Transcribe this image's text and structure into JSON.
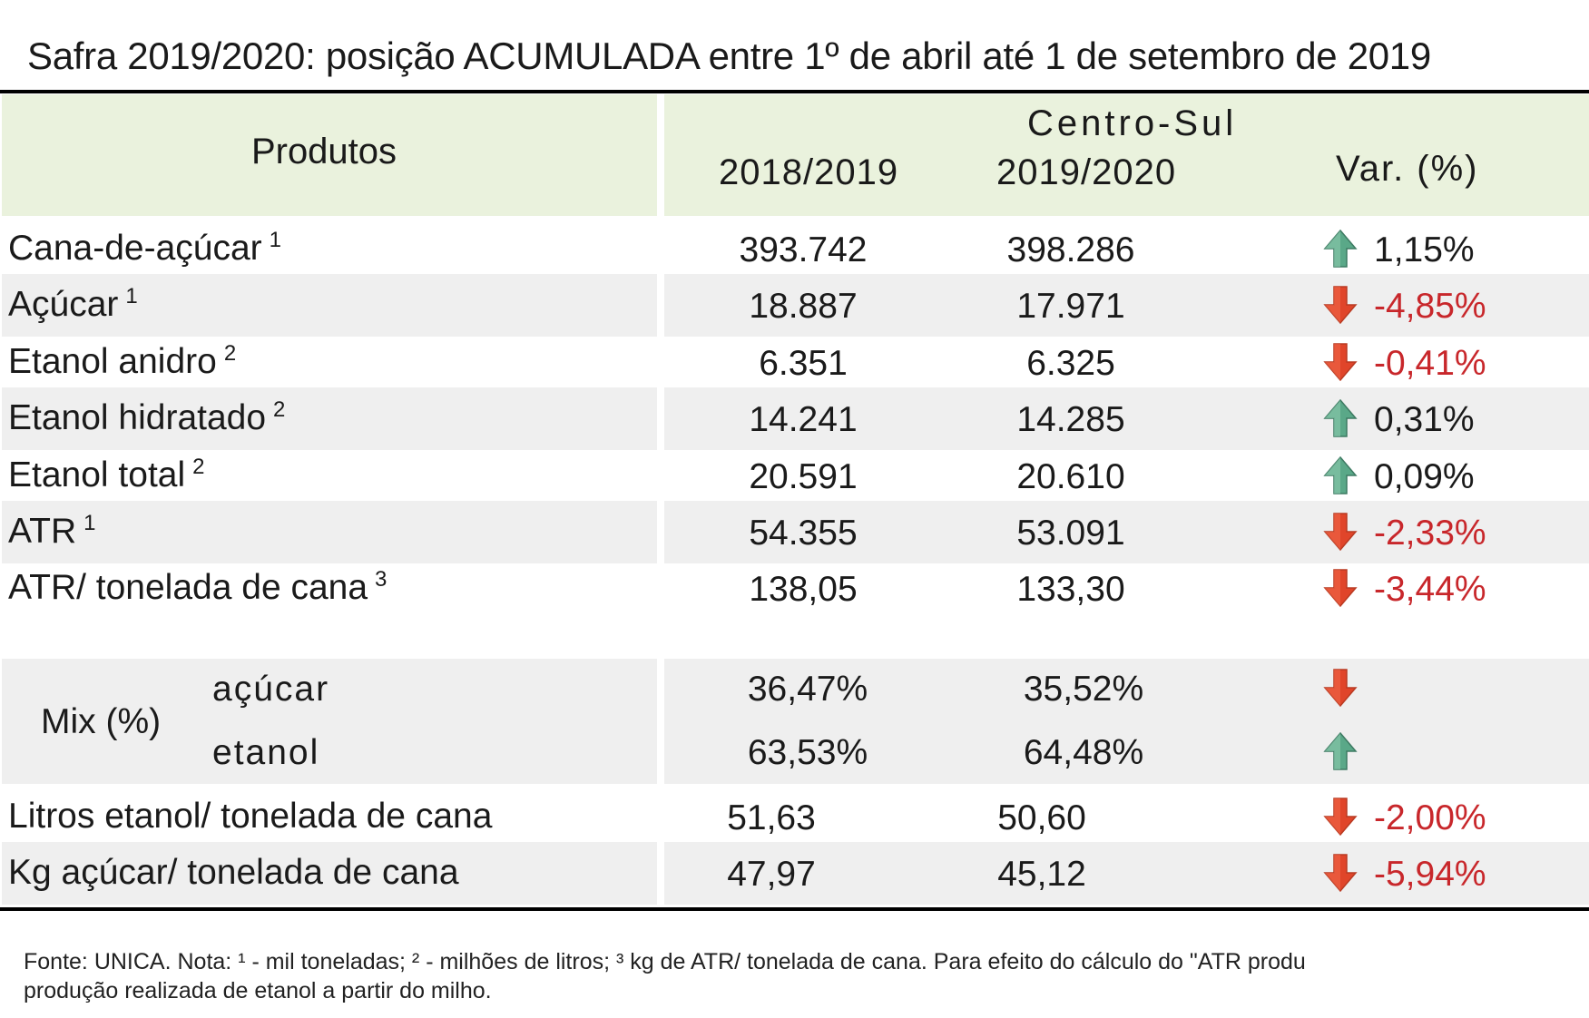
{
  "title": "Safra 2019/2020: posição ACUMULADA entre 1º de abril até 1 de setembro de 2019",
  "header": {
    "produtos": "Produtos",
    "region": "Centro-Sul",
    "col_2018": "2018/2019",
    "col_2019": "2019/2020",
    "col_var": "Var. (%)"
  },
  "rows": [
    {
      "label": "Cana-de-açúcar",
      "note": "1",
      "v2018": "393.742",
      "v2019": "398.286",
      "var": "1,15%",
      "trend": "up"
    },
    {
      "label": "Açúcar",
      "note": "1",
      "v2018": "18.887",
      "v2019": "17.971",
      "var": "-4,85%",
      "trend": "down"
    },
    {
      "label": "Etanol anidro",
      "note": "2",
      "v2018": "6.351",
      "v2019": "6.325",
      "var": "-0,41%",
      "trend": "down"
    },
    {
      "label": "Etanol hidratado",
      "note": "2",
      "v2018": "14.241",
      "v2019": "14.285",
      "var": "0,31%",
      "trend": "up"
    },
    {
      "label": "Etanol total",
      "note": "2",
      "v2018": "20.591",
      "v2019": "20.610",
      "var": "0,09%",
      "trend": "up"
    },
    {
      "label": "ATR",
      "note": "1",
      "v2018": "54.355",
      "v2019": "53.091",
      "var": "-2,33%",
      "trend": "down"
    },
    {
      "label": "ATR/ tonelada de cana",
      "note": "3",
      "v2018": "138,05",
      "v2019": "133,30",
      "var": "-3,44%",
      "trend": "down"
    }
  ],
  "mix": {
    "label": "Mix (%)",
    "items": [
      {
        "label": "açúcar",
        "v2018": "36,47%",
        "v2019": "35,52%",
        "trend": "down"
      },
      {
        "label": "etanol",
        "v2018": "63,53%",
        "v2019": "64,48%",
        "trend": "up"
      }
    ]
  },
  "rows_bottom": [
    {
      "label": "Litros etanol/ tonelada de cana",
      "v2018": "51,63",
      "v2019": "50,60",
      "var": "-2,00%",
      "trend": "down"
    },
    {
      "label": "Kg açúcar/ tonelada de cana",
      "v2018": "47,97",
      "v2019": "45,12",
      "var": "-5,94%",
      "trend": "down"
    }
  ],
  "footnote": {
    "line1": "Fonte: UNICA. Nota: ¹ - mil toneladas; ² - milhões de litros; ³    kg de ATR/ tonelada de cana. Para efeito do cálculo do \"ATR produ",
    "line2": "produção realizada de etanol a partir do milho."
  },
  "colors": {
    "header_bg": "#eaf2dd",
    "shade_bg": "#efefef",
    "negative_text": "#c8272b",
    "arrow_up": "#5aa888",
    "arrow_down": "#e0452a"
  }
}
